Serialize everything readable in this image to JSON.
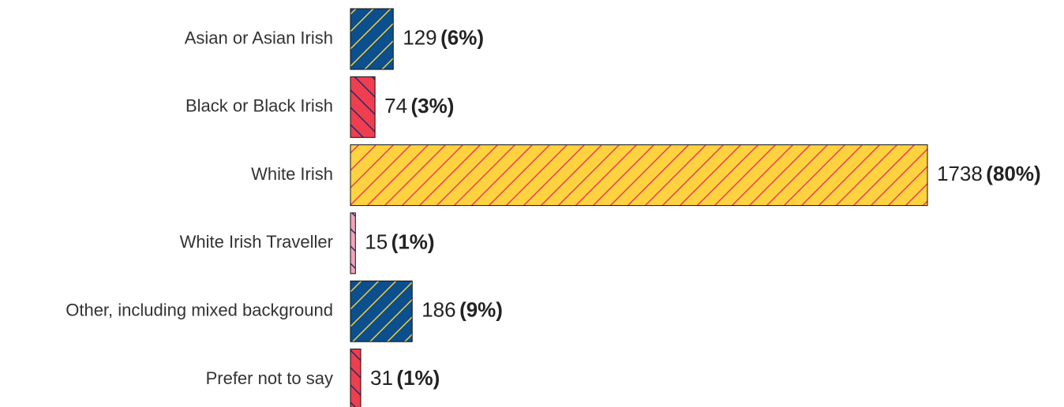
{
  "chart_data": {
    "type": "bar",
    "orientation": "horizontal",
    "categories": [
      "Asian or Asian Irish",
      "Black or Black Irish",
      "White Irish",
      "White Irish Traveller",
      "Other, including mixed background",
      "Prefer not to say"
    ],
    "values": [
      129,
      74,
      1738,
      15,
      186,
      31
    ],
    "percent_labels": [
      "(6%)",
      "(3%)",
      "(80%)",
      "(1%)",
      "(9%)",
      "(1%)"
    ],
    "colors": [
      "#0b4f8c",
      "#ef3e4f",
      "#ffd23f",
      "#f4a3b5",
      "#0b4f8c",
      "#ef3e4f"
    ],
    "hatch_colors": [
      "#ffd23f",
      "#1f2a6b",
      "#e8385a",
      "#1f2a6b",
      "#ffd23f",
      "#1f2a6b"
    ],
    "hatch": [
      "/",
      "\\",
      "/",
      "\\",
      "/",
      "\\"
    ]
  }
}
